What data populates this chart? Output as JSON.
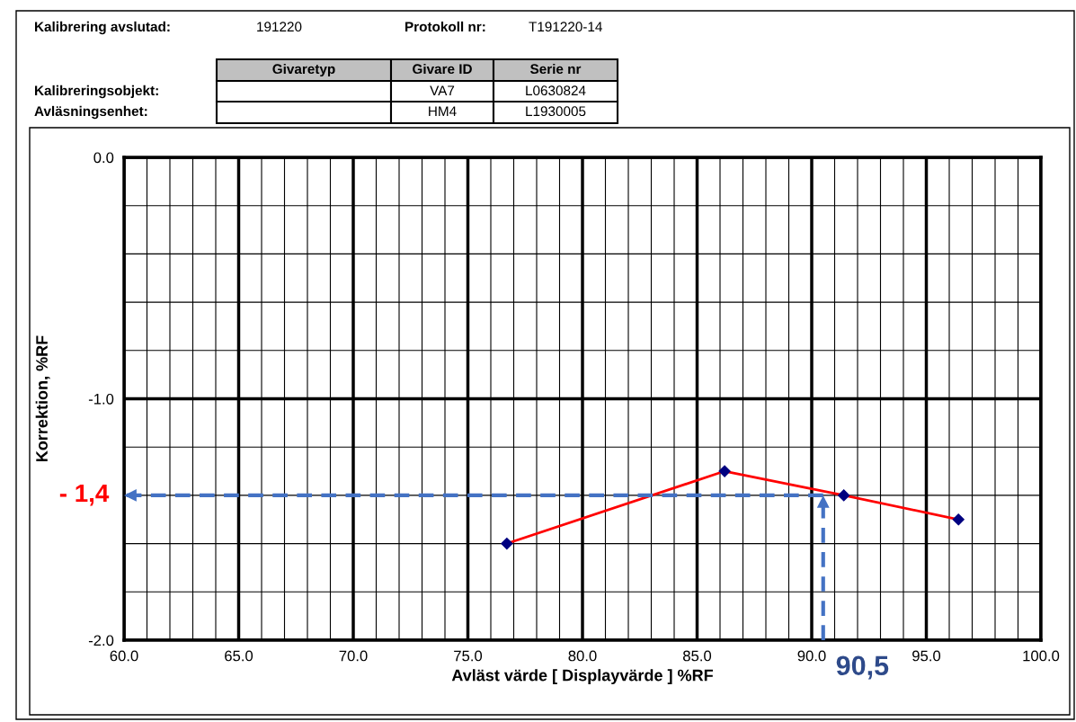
{
  "chart_data": {
    "type": "line",
    "xlabel": "Avläst värde [ Displayvärde ] %RF",
    "ylabel": "Korrektion, %RF",
    "x": [
      76.7,
      86.2,
      91.4,
      96.4
    ],
    "series": [
      {
        "color": "#ff0000",
        "values": [
          -1.6,
          -1.3,
          -1.4,
          -1.5
        ]
      }
    ],
    "marker": "diamond",
    "line_style": "solid",
    "xlim": [
      60,
      100
    ],
    "ylim": [
      -2,
      0
    ],
    "xticks": [
      {
        "value": 60,
        "label": "60.0"
      },
      {
        "value": 65,
        "label": "65.0"
      },
      {
        "value": 70,
        "label": "70.0"
      },
      {
        "value": 75,
        "label": "75.0"
      },
      {
        "value": 80,
        "label": "80.0"
      },
      {
        "value": 85,
        "label": "85.0"
      },
      {
        "value": 90,
        "label": "90.0"
      },
      {
        "value": 95,
        "label": "95.0"
      },
      {
        "value": 100,
        "label": "100.0"
      }
    ],
    "yticks": [
      {
        "value": -2,
        "label": "-2.0"
      },
      {
        "value": -1,
        "label": "-1.0"
      },
      {
        "value": 0,
        "label": "0.0"
      }
    ],
    "grid": true,
    "ref_lines": [
      {
        "axis": "y",
        "value": -1.4,
        "label": "- 1,4",
        "color": "#4472c4",
        "line_style": "dashed"
      },
      {
        "axis": "x",
        "value": 90.5,
        "label": "90,5",
        "color": "#4472c4",
        "line_style": "dashed"
      }
    ],
    "annotations": [
      "Kalibrering avslutad:",
      "191220",
      "Protokoll nr:",
      "T191220-14",
      "Givaretyp",
      "Givare ID",
      "Serie nr",
      "Kalibreringsobjekt:",
      "Avläsningsenhet:",
      "VA7",
      "L0630824",
      "HM4",
      "L1930005"
    ]
  }
}
